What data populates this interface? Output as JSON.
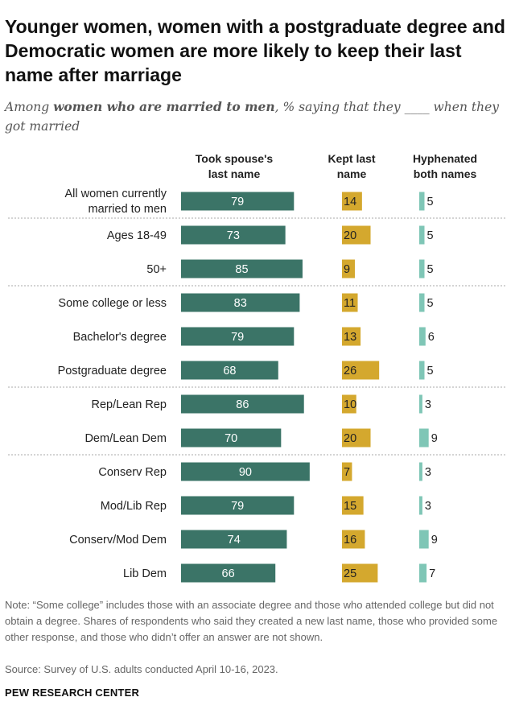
{
  "title": "Younger women, women with a postgraduate degree and Democratic women are more likely to keep their last name after marriage",
  "subtitle": {
    "before": "Among ",
    "emphasis": "women who are married to men",
    "after": ", % saying that they ____ when they got married"
  },
  "note": "Note: “Some college” includes those with an associate degree and those who attended college but did not obtain a degree. Shares of respondents who said they created a new last name, those who provided some other response, and those who didn’t offer an answer are not shown.",
  "source": "Source: Survey of U.S. adults conducted April 10-16, 2023.",
  "brand": "PEW RESEARCH CENTER",
  "colors": {
    "took": "#3b7467",
    "kept": "#d4a82e",
    "hyphen": "#7fc6b6",
    "separator": "#aaaaaa"
  },
  "chart_data": {
    "type": "bar",
    "series": [
      {
        "name": "Took spouse's last name",
        "header_lines": [
          "Took spouse's",
          "last name"
        ],
        "values": [
          79,
          73,
          85,
          83,
          79,
          68,
          86,
          70,
          90,
          79,
          74,
          66
        ]
      },
      {
        "name": "Kept last name",
        "header_lines": [
          "Kept last",
          "name"
        ],
        "values": [
          14,
          20,
          9,
          11,
          13,
          26,
          10,
          20,
          7,
          15,
          16,
          25
        ]
      },
      {
        "name": "Hyphenated both names",
        "header_lines": [
          "Hyphenated",
          "both names"
        ],
        "values": [
          5,
          5,
          5,
          5,
          6,
          5,
          3,
          9,
          3,
          3,
          9,
          7
        ]
      }
    ],
    "categories": [
      {
        "label_lines": [
          "All women currently",
          "married to men"
        ]
      },
      {
        "label_lines": [
          "Ages 18-49"
        ]
      },
      {
        "label_lines": [
          "50+"
        ]
      },
      {
        "label_lines": [
          "Some college or less"
        ]
      },
      {
        "label_lines": [
          "Bachelor's degree"
        ]
      },
      {
        "label_lines": [
          "Postgraduate degree"
        ]
      },
      {
        "label_lines": [
          "Rep/Lean Rep"
        ]
      },
      {
        "label_lines": [
          "Dem/Lean Dem"
        ]
      },
      {
        "label_lines": [
          "Conserv Rep"
        ]
      },
      {
        "label_lines": [
          "Mod/Lib Rep"
        ]
      },
      {
        "label_lines": [
          "Conserv/Mod Dem"
        ]
      },
      {
        "label_lines": [
          "Lib Dem"
        ]
      }
    ],
    "group_separators_after": [
      0,
      2,
      5,
      7
    ]
  }
}
